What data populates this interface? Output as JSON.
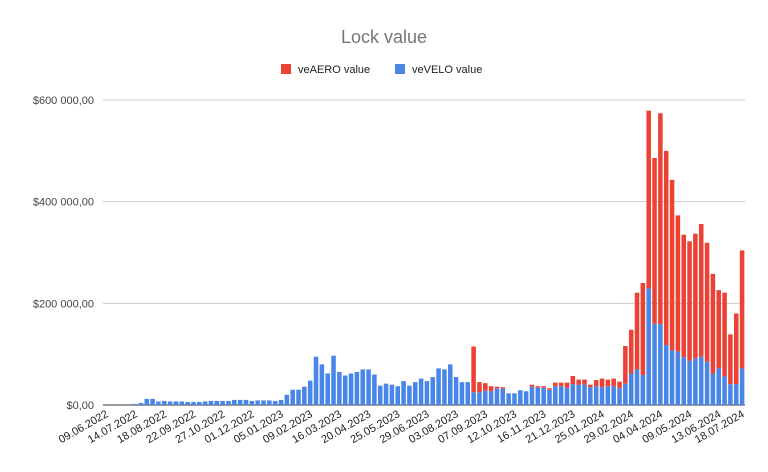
{
  "chart_data": {
    "type": "bar",
    "stacked": true,
    "title": "Lock value",
    "xlabel": "",
    "ylabel": "",
    "ylim": [
      0,
      600000
    ],
    "y_ticks": [
      0,
      200000,
      400000,
      600000
    ],
    "y_tick_labels": [
      "$0,00",
      "$200 000,00",
      "$400 000,00",
      "$600 000,00"
    ],
    "grid": true,
    "legend_position": "top",
    "x_tick_labels": [
      "09.06.2022",
      "14.07.2022",
      "18.08.2022",
      "22.09.2022",
      "27.10.2022",
      "01.12.2022",
      "05.01.2023",
      "09.02.2023",
      "16.03.2023",
      "20.04.2023",
      "25.05.2023",
      "29.06.2023",
      "03.08.2023",
      "07.09.2023",
      "12.10.2023",
      "16.11.2023",
      "21.12.2023",
      "25.01.2024",
      "29.02.2024",
      "04.04.2024",
      "09.05.2024",
      "13.06.2024",
      "18.07.2024"
    ],
    "series": [
      {
        "name": "veVELO value",
        "color": "#4a86e8",
        "values": [
          0,
          0,
          0,
          0,
          0,
          2000,
          4000,
          12000,
          12000,
          7000,
          8000,
          7000,
          7000,
          7000,
          6000,
          6000,
          6000,
          7000,
          8000,
          8000,
          8000,
          8000,
          10000,
          10000,
          10000,
          8000,
          9000,
          9000,
          9000,
          8000,
          10000,
          20000,
          30000,
          30000,
          36000,
          48000,
          95000,
          80000,
          62000,
          97000,
          65000,
          58000,
          62000,
          65000,
          70000,
          70000,
          60000,
          38000,
          42000,
          40000,
          37000,
          47000,
          38000,
          45000,
          52000,
          47000,
          55000,
          72000,
          70000,
          80000,
          55000,
          45000,
          45000,
          25000,
          25000,
          28000,
          27000,
          33000,
          32000,
          23000,
          23000,
          29000,
          27000,
          36000,
          34000,
          34000,
          30000,
          37000,
          37000,
          34000,
          41000,
          40000,
          40000,
          35000,
          37000,
          35000,
          37000,
          37000,
          33000,
          42000,
          62000,
          70000,
          59000,
          229000,
          160000,
          159000,
          118000,
          108000,
          105000,
          94000,
          87000,
          92000,
          95000,
          85000,
          62000,
          72000,
          56000,
          41000,
          41000,
          72000
        ]
      },
      {
        "name": "veAERO value",
        "color": "#ea4335",
        "values": [
          0,
          0,
          0,
          0,
          0,
          0,
          0,
          0,
          0,
          0,
          0,
          0,
          0,
          0,
          0,
          0,
          0,
          0,
          0,
          0,
          0,
          0,
          0,
          0,
          0,
          0,
          0,
          0,
          0,
          0,
          0,
          0,
          0,
          0,
          0,
          0,
          0,
          0,
          0,
          0,
          0,
          0,
          0,
          0,
          0,
          0,
          0,
          0,
          0,
          0,
          0,
          0,
          0,
          0,
          0,
          0,
          0,
          0,
          0,
          0,
          0,
          0,
          0,
          90000,
          20000,
          15000,
          10000,
          3000,
          3000,
          0,
          0,
          0,
          0,
          4000,
          3000,
          3000,
          3000,
          7000,
          7000,
          10000,
          16000,
          10000,
          10000,
          5000,
          12000,
          17000,
          13000,
          15000,
          13000,
          74000,
          86000,
          151000,
          181000,
          350000,
          326000,
          415000,
          382000,
          335000,
          268000,
          241000,
          235000,
          245000,
          261000,
          234000,
          196000,
          154000,
          165000,
          98000,
          139000,
          232000
        ]
      }
    ]
  }
}
